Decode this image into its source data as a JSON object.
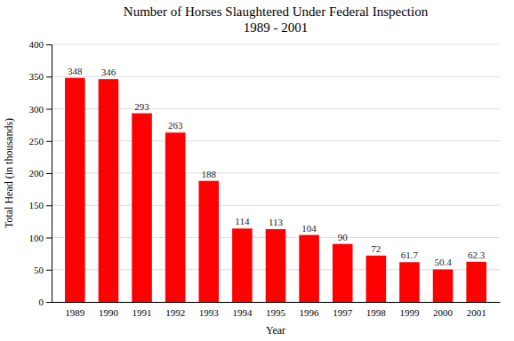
{
  "chart_data": {
    "type": "bar",
    "title": "Number of Horses Slaughtered Under Federal Inspection",
    "subtitle": "1989 - 2001",
    "categories": [
      "1989",
      "1990",
      "1991",
      "1992",
      "1993",
      "1994",
      "1995",
      "1996",
      "1997",
      "1998",
      "1999",
      "2000",
      "2001"
    ],
    "values": [
      348,
      346,
      293,
      263,
      188,
      114,
      113,
      104,
      90,
      72,
      61.7,
      50.4,
      62.3
    ],
    "color": "#ff0000",
    "x_label": "Year",
    "y_label": "Total Head (in thousands)",
    "ylim": [
      0,
      400
    ],
    "yticks": [
      0,
      50,
      100,
      150,
      200,
      250,
      300,
      350,
      400
    ],
    "grid": true,
    "data_labels": true
  }
}
